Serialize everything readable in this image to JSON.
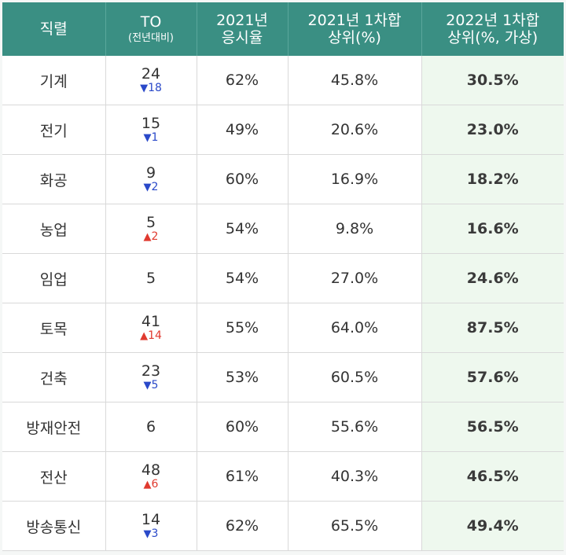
{
  "header": {
    "col1": "직렬",
    "col2_main": "TO",
    "col2_sub": "(전년대비)",
    "col3_line1": "2021년",
    "col3_line2": "응시율",
    "col4_line1": "2021년 1차합",
    "col4_line2": "상위(%)",
    "col5_line1": "2022년 1차합",
    "col5_line2": "상위(%, 가상)"
  },
  "colors": {
    "header_bg": "#3a8f83",
    "last_col_bg": "#eef8ee",
    "down": "#2a49c9",
    "up": "#e03a2f"
  },
  "rows": [
    {
      "name": "기계",
      "to": "24",
      "change": "18",
      "dir": "down",
      "rate": "62%",
      "y2021": "45.8%",
      "y2022": "30.5%"
    },
    {
      "name": "전기",
      "to": "15",
      "change": "1",
      "dir": "down",
      "rate": "49%",
      "y2021": "20.6%",
      "y2022": "23.0%"
    },
    {
      "name": "화공",
      "to": "9",
      "change": "2",
      "dir": "down",
      "rate": "60%",
      "y2021": "16.9%",
      "y2022": "18.2%"
    },
    {
      "name": "농업",
      "to": "5",
      "change": "2",
      "dir": "up",
      "rate": "54%",
      "y2021": "9.8%",
      "y2022": "16.6%"
    },
    {
      "name": "임업",
      "to": "5",
      "change": "",
      "dir": "none",
      "rate": "54%",
      "y2021": "27.0%",
      "y2022": "24.6%"
    },
    {
      "name": "토목",
      "to": "41",
      "change": "14",
      "dir": "up",
      "rate": "55%",
      "y2021": "64.0%",
      "y2022": "87.5%"
    },
    {
      "name": "건축",
      "to": "23",
      "change": "5",
      "dir": "down",
      "rate": "53%",
      "y2021": "60.5%",
      "y2022": "57.6%"
    },
    {
      "name": "방재안전",
      "to": "6",
      "change": "",
      "dir": "none",
      "rate": "60%",
      "y2021": "55.6%",
      "y2022": "56.5%"
    },
    {
      "name": "전산",
      "to": "48",
      "change": "6",
      "dir": "up",
      "rate": "61%",
      "y2021": "40.3%",
      "y2022": "46.5%"
    },
    {
      "name": "방송통신",
      "to": "14",
      "change": "3",
      "dir": "down",
      "rate": "62%",
      "y2021": "65.5%",
      "y2022": "49.4%"
    }
  ]
}
